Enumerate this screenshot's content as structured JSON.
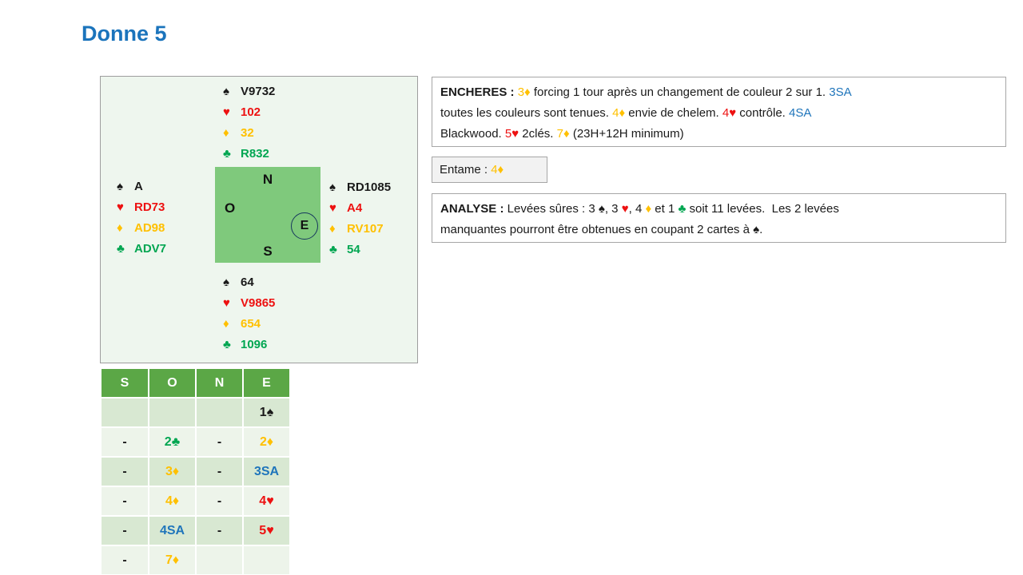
{
  "title": "Donne 5",
  "palette": {
    "spade": "#1a1a1a",
    "heart": "#ed1111",
    "diamond": "#ffc000",
    "club": "#00a651",
    "blue": "#1f75bb",
    "black": "#1a1a1a"
  },
  "diagram": {
    "suit_symbols": {
      "spades": "♠",
      "hearts": "♥",
      "diamonds": "♦",
      "clubs": "♣"
    },
    "compass": {
      "north": "N",
      "west": "O",
      "south": "S",
      "east": "E"
    },
    "hands": {
      "north": {
        "spades": "V9732",
        "hearts": "102",
        "diamonds": "32",
        "clubs": "R832"
      },
      "west": {
        "spades": "A",
        "hearts": "RD73",
        "diamonds": "AD98",
        "clubs": "ADV7"
      },
      "east": {
        "spades": "RD1085",
        "hearts": "A4",
        "diamonds": "RV107",
        "clubs": "54"
      },
      "south": {
        "spades": "64",
        "hearts": "V9865",
        "diamonds": "654",
        "clubs": "1096"
      }
    }
  },
  "bidding": {
    "headers": [
      "S",
      "O",
      "N",
      "E"
    ],
    "rows": [
      [
        {
          "text": "",
          "color": "black"
        },
        {
          "text": "",
          "color": "black"
        },
        {
          "text": "",
          "color": "black"
        },
        {
          "text": "1♠",
          "color": "black"
        }
      ],
      [
        {
          "text": "-",
          "color": "black"
        },
        {
          "text": "2♣",
          "color": "club"
        },
        {
          "text": "-",
          "color": "black"
        },
        {
          "text": "2♦",
          "color": "diamond"
        }
      ],
      [
        {
          "text": "-",
          "color": "black"
        },
        {
          "text": "3♦",
          "color": "diamond"
        },
        {
          "text": "-",
          "color": "black"
        },
        {
          "text": "3SA",
          "color": "blue"
        }
      ],
      [
        {
          "text": "-",
          "color": "black"
        },
        {
          "text": "4♦",
          "color": "diamond"
        },
        {
          "text": "-",
          "color": "black"
        },
        {
          "text": "4♥",
          "color": "heart"
        }
      ],
      [
        {
          "text": "-",
          "color": "black"
        },
        {
          "text": "4SA",
          "color": "blue"
        },
        {
          "text": "-",
          "color": "black"
        },
        {
          "text": "5♥",
          "color": "heart"
        }
      ],
      [
        {
          "text": "-",
          "color": "black"
        },
        {
          "text": "7♦",
          "color": "diamond"
        },
        {
          "text": "",
          "color": "black"
        },
        {
          "text": "",
          "color": "black"
        }
      ]
    ]
  },
  "encheres": {
    "lines": [
      [
        {
          "text": "ENCHERES : ",
          "color": "black",
          "bold": true
        },
        {
          "text": "3♦",
          "color": "diamond"
        },
        {
          "text": " forcing 1 tour après un changement de couleur 2 sur 1. ",
          "color": "black"
        },
        {
          "text": "3SA",
          "color": "blue"
        }
      ],
      [
        {
          "text": "toutes les couleurs sont tenues. ",
          "color": "black"
        },
        {
          "text": "4♦",
          "color": "diamond"
        },
        {
          "text": " envie de chelem. ",
          "color": "black"
        },
        {
          "text": "4♥",
          "color": "heart"
        },
        {
          "text": " contrôle. ",
          "color": "black"
        },
        {
          "text": "4SA",
          "color": "blue"
        }
      ],
      [
        {
          "text": "Blackwood. ",
          "color": "black"
        },
        {
          "text": "5♥",
          "color": "heart"
        },
        {
          "text": " 2clés. ",
          "color": "black"
        },
        {
          "text": "7♦",
          "color": "diamond"
        },
        {
          "text": " (23H+12H minimum)",
          "color": "black"
        }
      ]
    ]
  },
  "entame": {
    "lines": [
      [
        {
          "text": "Entame : ",
          "color": "black"
        },
        {
          "text": "4♦",
          "color": "diamond"
        }
      ]
    ]
  },
  "analyse": {
    "lines": [
      [
        {
          "text": "ANALYSE : ",
          "color": "black",
          "bold": true
        },
        {
          "text": "Levées sûres : 3 ",
          "color": "black"
        },
        {
          "text": "♠",
          "color": "spade"
        },
        {
          "text": ", 3 ",
          "color": "black"
        },
        {
          "text": "♥",
          "color": "heart"
        },
        {
          "text": ", 4 ",
          "color": "black"
        },
        {
          "text": "♦",
          "color": "diamond"
        },
        {
          "text": " et 1 ",
          "color": "black"
        },
        {
          "text": "♣",
          "color": "club"
        },
        {
          "text": " soit 11 levées.  Les 2 levées",
          "color": "black"
        }
      ],
      [
        {
          "text": "manquantes pourront être obtenues en coupant 2 cartes à ",
          "color": "black"
        },
        {
          "text": "♠",
          "color": "spade"
        },
        {
          "text": ".",
          "color": "black"
        }
      ]
    ]
  }
}
